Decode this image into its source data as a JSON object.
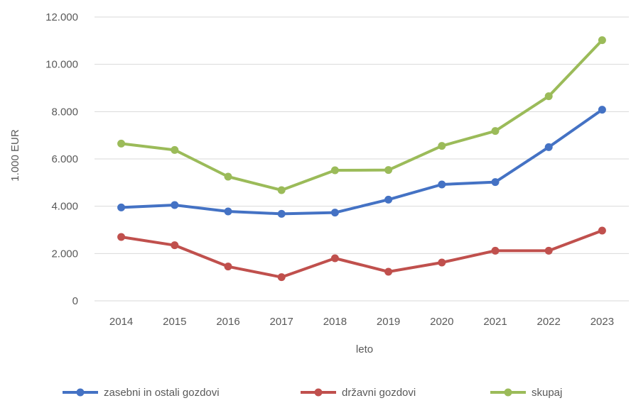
{
  "chart_data": {
    "type": "line",
    "xlabel": "leto",
    "ylabel": "1.000 EUR",
    "ylim": [
      0,
      12000
    ],
    "y_ticks": [
      0,
      2000,
      4000,
      6000,
      8000,
      10000,
      12000
    ],
    "y_tick_labels": [
      "0",
      "2.000",
      "4.000",
      "6.000",
      "8.000",
      "10.000",
      "12.000"
    ],
    "grid": "horizontal",
    "legend_position": "bottom",
    "categories": [
      "2014",
      "2015",
      "2016",
      "2017",
      "2018",
      "2019",
      "2020",
      "2021",
      "2022",
      "2023"
    ],
    "series": [
      {
        "name": "zasebni in ostali gozdovi",
        "color": "#4472C4",
        "values": [
          3950,
          4050,
          3780,
          3680,
          3730,
          4280,
          4920,
          5020,
          6500,
          8080
        ]
      },
      {
        "name": "državni gozdovi",
        "color": "#C0504D",
        "values": [
          2700,
          2350,
          1450,
          1000,
          1800,
          1230,
          1620,
          2120,
          2120,
          2970
        ]
      },
      {
        "name": "skupaj",
        "color": "#9BBB59",
        "values": [
          6650,
          6380,
          5250,
          4680,
          5520,
          5530,
          6550,
          7180,
          8650,
          11020
        ]
      }
    ]
  }
}
